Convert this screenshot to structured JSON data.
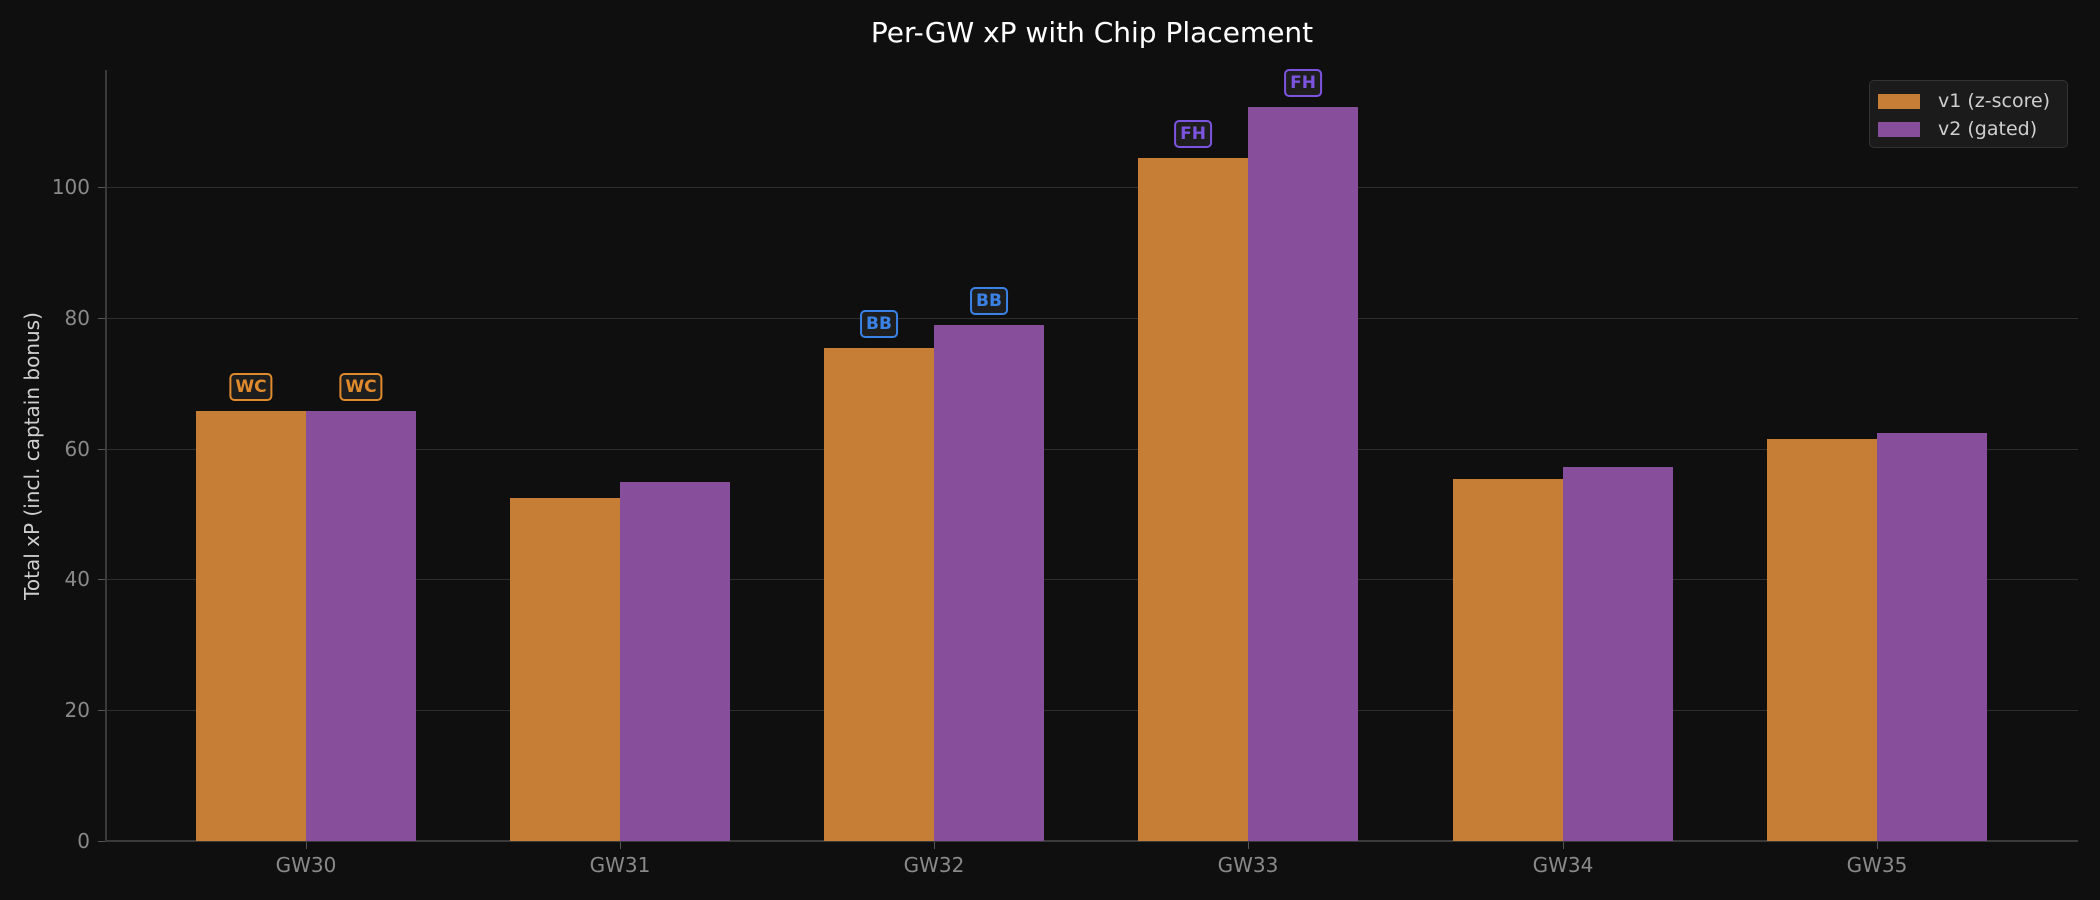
{
  "chart_data": {
    "type": "bar",
    "title": "Per-GW xP with Chip Placement",
    "xlabel": "",
    "ylabel": "Total xP (incl. captain bonus)",
    "ylim": [
      0,
      118
    ],
    "yticks": [
      0,
      20,
      40,
      60,
      80,
      100
    ],
    "grid": true,
    "legend_position": "upper right",
    "categories": [
      "GW30",
      "GW31",
      "GW32",
      "GW33",
      "GW34",
      "GW35"
    ],
    "series": [
      {
        "name": "v1 (z-score)",
        "color": "#c67d36",
        "values": [
          65.7,
          52.4,
          75.4,
          104.4,
          55.4,
          61.5
        ]
      },
      {
        "name": "v2 (gated)",
        "color": "#874f9b",
        "values": [
          65.7,
          54.9,
          78.9,
          112.2,
          57.2,
          62.4
        ]
      }
    ],
    "annotations": [
      {
        "category": "GW30",
        "series": "v1 (z-score)",
        "label": "WC",
        "color": "#e08a2e"
      },
      {
        "category": "GW30",
        "series": "v2 (gated)",
        "label": "WC",
        "color": "#e08a2e"
      },
      {
        "category": "GW32",
        "series": "v1 (z-score)",
        "label": "BB",
        "color": "#3b82e6"
      },
      {
        "category": "GW32",
        "series": "v2 (gated)",
        "label": "BB",
        "color": "#3b82e6"
      },
      {
        "category": "GW33",
        "series": "v1 (z-score)",
        "label": "FH",
        "color": "#7c54e0"
      },
      {
        "category": "GW33",
        "series": "v2 (gated)",
        "label": "FH",
        "color": "#7c54e0"
      }
    ]
  }
}
